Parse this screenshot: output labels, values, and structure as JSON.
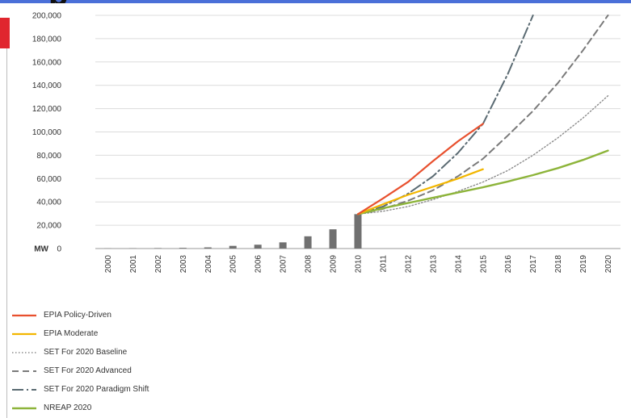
{
  "header": {
    "title_fragment": "p"
  },
  "colors": {
    "top_band": "#4a6fd8",
    "red_tab": "#e0262e",
    "bars": "#707070",
    "grid": "#dcdcdc"
  },
  "chart_data": {
    "type": "line",
    "unit_label": "MW",
    "x": [
      2000,
      2001,
      2002,
      2003,
      2004,
      2005,
      2006,
      2007,
      2008,
      2009,
      2010,
      2011,
      2012,
      2013,
      2014,
      2015,
      2016,
      2017,
      2018,
      2019,
      2020
    ],
    "ylim": [
      0,
      200000
    ],
    "y_ticks": [
      "200,000",
      "180,000",
      "160,000",
      "140,000",
      "120,000",
      "100,000",
      "80,000",
      "60,000",
      "40,000",
      "20,000",
      "0"
    ],
    "grid": true,
    "legend_position": "bottom-left",
    "historical_bars": {
      "x": [
        2000,
        2001,
        2002,
        2003,
        2004,
        2005,
        2006,
        2007,
        2008,
        2009,
        2010
      ],
      "values": [
        150,
        250,
        400,
        600,
        1000,
        2300,
        3300,
        5300,
        10500,
        16500,
        29500
      ]
    },
    "series": [
      {
        "name": "EPIA Policy-Driven",
        "color": "#e8502e",
        "style": "solid",
        "width": 2.2,
        "x": [
          2010,
          2011,
          2012,
          2013,
          2014,
          2015
        ],
        "y": [
          29500,
          43000,
          57000,
          75000,
          92000,
          107000
        ]
      },
      {
        "name": "EPIA Moderate",
        "color": "#f2b600",
        "style": "solid",
        "width": 2.2,
        "x": [
          2010,
          2011,
          2012,
          2013,
          2014,
          2015
        ],
        "y": [
          29500,
          38000,
          46000,
          53000,
          60000,
          68000
        ]
      },
      {
        "name": "SET For 2020 Baseline",
        "color": "#8c8c8c",
        "style": "dotted",
        "width": 1.4,
        "x": [
          2010,
          2011,
          2012,
          2013,
          2014,
          2015,
          2016,
          2017,
          2018,
          2019,
          2020
        ],
        "y": [
          29500,
          32000,
          36000,
          42000,
          49000,
          57000,
          67000,
          80000,
          95000,
          112000,
          131000
        ]
      },
      {
        "name": "SET For 2020 Advanced",
        "color": "#7a7a7a",
        "style": "dashed",
        "width": 2,
        "x": [
          2010,
          2011,
          2012,
          2013,
          2014,
          2015,
          2016,
          2017,
          2018,
          2019,
          2020
        ],
        "y": [
          29500,
          34000,
          41000,
          50000,
          62000,
          77000,
          97000,
          118000,
          142000,
          170000,
          200000
        ]
      },
      {
        "name": "SET For 2020 Paradigm Shift",
        "color": "#5a6a72",
        "style": "dashdot",
        "width": 2,
        "x": [
          2010,
          2011,
          2012,
          2013,
          2014,
          2015,
          2016,
          2017
        ],
        "y": [
          29500,
          36000,
          47000,
          62000,
          82000,
          107000,
          150000,
          200000
        ]
      },
      {
        "name": "NREAP 2020",
        "color": "#8db43a",
        "style": "solid",
        "width": 2.4,
        "x": [
          2010,
          2011,
          2012,
          2013,
          2014,
          2015,
          2016,
          2017,
          2018,
          2019,
          2020
        ],
        "y": [
          29500,
          34500,
          39000,
          43500,
          48000,
          52500,
          57500,
          63000,
          69000,
          76000,
          84000
        ]
      }
    ]
  }
}
